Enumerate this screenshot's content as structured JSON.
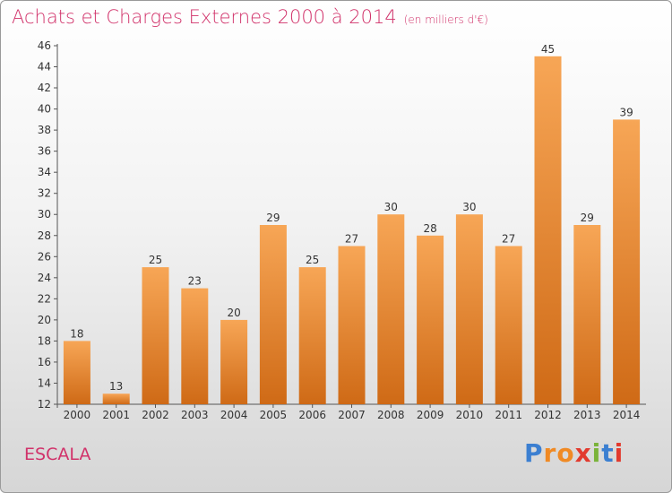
{
  "title": "Achats et Charges Externes 2000 à 2014",
  "subtitle": "(en milliers d'€)",
  "place": "ESCALA",
  "logo": {
    "letters": [
      "P",
      "r",
      "o",
      "x",
      "i",
      "t",
      "i"
    ]
  },
  "colors": {
    "title": "#d1326a",
    "bar_top": "#f7a656",
    "bar_bottom": "#cf6a16",
    "logo": [
      "#3b7fd1",
      "#f08a24",
      "#f08a24",
      "#e23a2e",
      "#7ab33a",
      "#3b7fd1",
      "#e23a2e"
    ]
  },
  "chart_data": {
    "type": "bar",
    "title": "Achats et Charges Externes 2000 à 2014",
    "subtitle": "(en milliers d'€)",
    "xlabel": "",
    "ylabel": "",
    "categories": [
      "2000",
      "2001",
      "2002",
      "2003",
      "2004",
      "2005",
      "2006",
      "2007",
      "2008",
      "2009",
      "2010",
      "2011",
      "2012",
      "2013",
      "2014"
    ],
    "values": [
      18,
      13,
      25,
      23,
      20,
      29,
      25,
      27,
      30,
      28,
      30,
      27,
      45,
      29,
      39
    ],
    "ylim": [
      12,
      46
    ],
    "yticks": [
      12,
      14,
      16,
      18,
      20,
      22,
      24,
      26,
      28,
      30,
      32,
      34,
      36,
      38,
      40,
      42,
      44,
      46
    ],
    "grid": false,
    "legend": "none"
  }
}
